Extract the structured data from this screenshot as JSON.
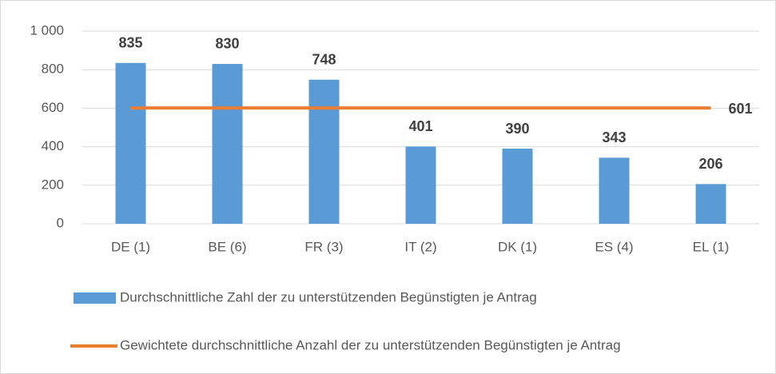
{
  "chart_data": {
    "type": "bar",
    "categories": [
      "DE (1)",
      "BE (6)",
      "FR (3)",
      "IT (2)",
      "DK (1)",
      "ES (4)",
      "EL (1)"
    ],
    "series": [
      {
        "name": "Durchschnittliche Zahl der zu unterstützenden Begünstigten je Antrag",
        "type": "bar",
        "color": "#5b9bd5",
        "values": [
          835,
          830,
          748,
          401,
          390,
          343,
          206
        ]
      },
      {
        "name": "Gewichtete durchschnittliche Anzahl der zu unterstützenden Begünstigten je Antrag",
        "type": "line",
        "color": "#ed7d31",
        "values": [
          601,
          601,
          601,
          601,
          601,
          601,
          601
        ]
      }
    ],
    "ylim": [
      0,
      1000
    ],
    "yticks": [
      0,
      200,
      400,
      600,
      800,
      {
        "value": 1000,
        "label": "1 000"
      }
    ],
    "grid": true
  }
}
